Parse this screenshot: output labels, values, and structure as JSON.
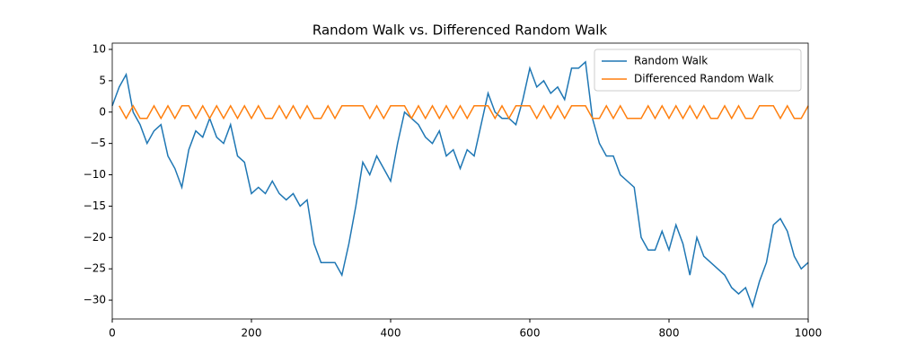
{
  "chart_data": {
    "type": "line",
    "title": "Random Walk vs. Differenced Random Walk",
    "x": [
      0,
      10,
      20,
      30,
      40,
      50,
      60,
      70,
      80,
      90,
      100,
      110,
      120,
      130,
      140,
      150,
      160,
      170,
      180,
      190,
      200,
      210,
      220,
      230,
      240,
      250,
      260,
      270,
      280,
      290,
      300,
      310,
      320,
      330,
      340,
      350,
      360,
      370,
      380,
      390,
      400,
      410,
      420,
      430,
      440,
      450,
      460,
      470,
      480,
      490,
      500,
      510,
      520,
      530,
      540,
      550,
      560,
      570,
      580,
      590,
      600,
      610,
      620,
      630,
      640,
      650,
      660,
      670,
      680,
      690,
      700,
      710,
      720,
      730,
      740,
      750,
      760,
      770,
      780,
      790,
      800,
      810,
      820,
      830,
      840,
      850,
      860,
      870,
      880,
      890,
      900,
      910,
      920,
      930,
      940,
      950,
      960,
      970,
      980,
      990,
      1000
    ],
    "series": [
      {
        "name": "Random Walk",
        "color": "#1f77b4",
        "values": [
          1,
          4,
          6,
          0,
          -2,
          -5,
          -3,
          -2,
          -7,
          -9,
          -12,
          -6,
          -3,
          -4,
          -1,
          -4,
          -5,
          -2,
          -7,
          -8,
          -13,
          -12,
          -13,
          -11,
          -13,
          -14,
          -13,
          -15,
          -14,
          -21,
          -24,
          -24,
          -24,
          -26,
          -21,
          -15,
          -8,
          -10,
          -7,
          -9,
          -11,
          -5,
          0,
          -1,
          -2,
          -4,
          -5,
          -3,
          -7,
          -6,
          -9,
          -6,
          -7,
          -2,
          3,
          0,
          -1,
          -1,
          -2,
          2,
          7,
          4,
          5,
          3,
          4,
          2,
          7,
          7,
          8,
          -1,
          -5,
          -7,
          -7,
          -10,
          -11,
          -12,
          -20,
          -22,
          -22,
          -19,
          -22,
          -18,
          -21,
          -26,
          -20,
          -23,
          -24,
          -25,
          -26,
          -28,
          -29,
          -28,
          -31,
          -27,
          -24,
          -18,
          -17,
          -19,
          -23,
          -25,
          -24
        ]
      },
      {
        "name": "Differenced Random Walk",
        "color": "#ff7f0e",
        "values": [
          null,
          1,
          -1,
          1,
          -1,
          -1,
          1,
          -1,
          1,
          -1,
          1,
          1,
          -1,
          1,
          -1,
          1,
          -1,
          1,
          -1,
          1,
          -1,
          1,
          -1,
          -1,
          1,
          -1,
          1,
          -1,
          1,
          -1,
          -1,
          1,
          -1,
          1,
          1,
          1,
          1,
          -1,
          1,
          -1,
          1,
          1,
          1,
          -1,
          1,
          -1,
          1,
          -1,
          1,
          -1,
          1,
          -1,
          1,
          1,
          1,
          -1,
          1,
          -1,
          1,
          1,
          1,
          -1,
          1,
          -1,
          1,
          -1,
          1,
          1,
          1,
          -1,
          -1,
          1,
          -1,
          1,
          -1,
          -1,
          -1,
          1,
          -1,
          1,
          -1,
          1,
          -1,
          1,
          -1,
          1,
          -1,
          -1,
          1,
          -1,
          1,
          -1,
          -1,
          1,
          1,
          1,
          -1,
          1,
          -1,
          -1,
          1
        ]
      }
    ],
    "xlim": [
      0,
      1000
    ],
    "xticks": [
      0,
      200,
      400,
      600,
      800,
      1000
    ],
    "ylim": [
      -33,
      11
    ],
    "yticks": [
      10,
      5,
      0,
      {
        "value": -5,
        "label": "−5"
      },
      {
        "value": -10,
        "label": "−10"
      },
      {
        "value": -15,
        "label": "−15"
      },
      {
        "value": -20,
        "label": "−20"
      },
      {
        "value": -25,
        "label": "−25"
      },
      {
        "value": -30,
        "label": "−30"
      }
    ],
    "legend": "upper right"
  }
}
